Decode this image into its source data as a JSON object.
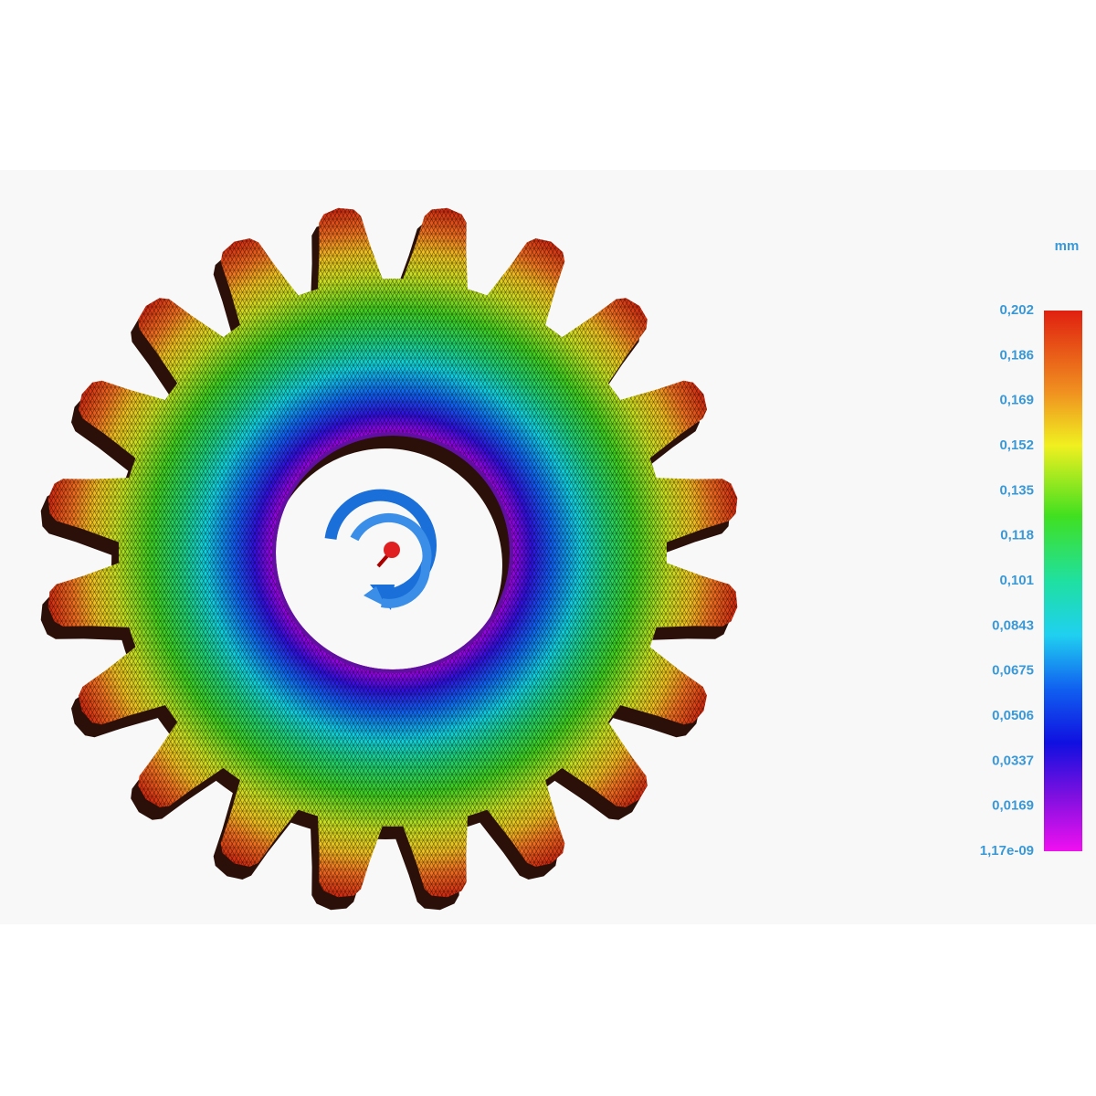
{
  "legend": {
    "unit": "mm",
    "labels": [
      "0,202",
      "0,186",
      "0,169",
      "0,152",
      "0,135",
      "0,118",
      "0,101",
      "0,0843",
      "0,0675",
      "0,0506",
      "0,0337",
      "0,0169",
      "1,17e-09"
    ]
  }
}
